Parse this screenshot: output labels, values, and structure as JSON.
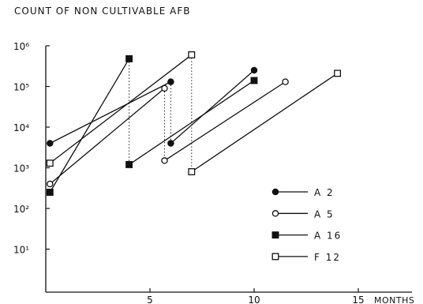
{
  "chart_data": {
    "type": "line",
    "title": "COUNT OF NON CULTIVABLE  AFB",
    "xlabel": "MONTHS",
    "ylabel": "",
    "y_scale": "log",
    "x_ticks": [
      "5",
      "10",
      "15"
    ],
    "x_tick_values": [
      5,
      10,
      15
    ],
    "y_tick_labels": [
      "10¹",
      "10²",
      "10³",
      "10⁴",
      "10⁵",
      "10⁶"
    ],
    "y_tick_values": [
      10,
      100,
      1000,
      10000,
      100000,
      1000000
    ],
    "grid": false,
    "legend_position": "lower-right",
    "series": [
      {
        "name": "A 2",
        "marker": "filled-circle",
        "segments": [
          [
            {
              "x": 0.2,
              "y": 4000
            },
            {
              "x": 6.0,
              "y": 130000
            }
          ],
          [
            {
              "x": 6.0,
              "y": 4000
            },
            {
              "x": 10.0,
              "y": 250000
            }
          ]
        ]
      },
      {
        "name": "A 5",
        "marker": "open-circle",
        "segments": [
          [
            {
              "x": 0.2,
              "y": 400
            },
            {
              "x": 5.7,
              "y": 90000
            }
          ],
          [
            {
              "x": 5.7,
              "y": 1500
            },
            {
              "x": 11.5,
              "y": 130000
            }
          ]
        ]
      },
      {
        "name": "A 16",
        "marker": "filled-square",
        "segments": [
          [
            {
              "x": 0.2,
              "y": 250
            },
            {
              "x": 4.0,
              "y": 480000
            }
          ],
          [
            {
              "x": 4.0,
              "y": 1200
            },
            {
              "x": 10.0,
              "y": 140000
            }
          ]
        ]
      },
      {
        "name": "F 12",
        "marker": "open-square",
        "segments": [
          [
            {
              "x": 0.2,
              "y": 1300
            },
            {
              "x": 7.0,
              "y": 600000
            }
          ],
          [
            {
              "x": 7.0,
              "y": 800
            },
            {
              "x": 14.0,
              "y": 210000
            }
          ]
        ]
      }
    ],
    "dotted_drops": [
      {
        "x": 4.0,
        "from": 480000,
        "to": 1200
      },
      {
        "x": 5.7,
        "from": 90000,
        "to": 1500
      },
      {
        "x": 6.0,
        "from": 130000,
        "to": 4000
      },
      {
        "x": 7.0,
        "from": 600000,
        "to": 800
      }
    ]
  }
}
